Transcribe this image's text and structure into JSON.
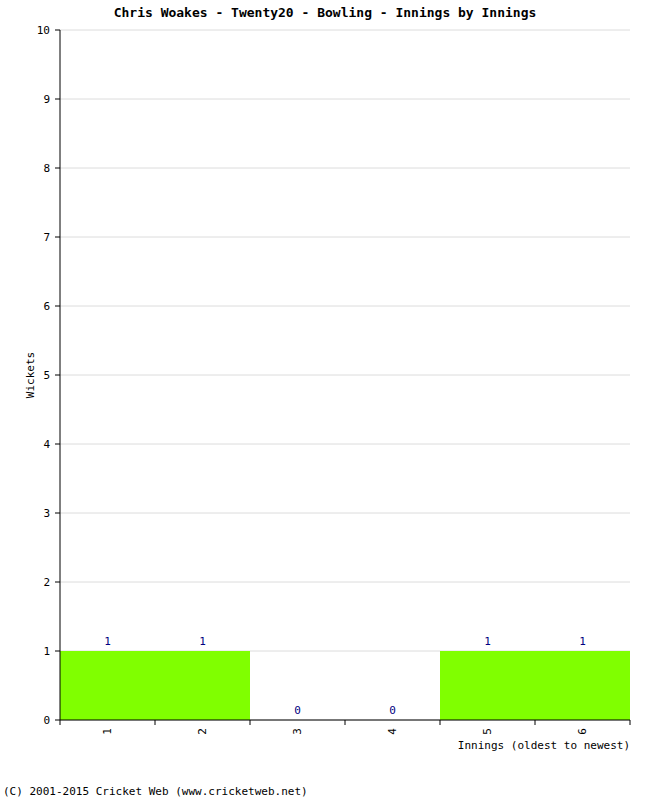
{
  "chart_data": {
    "type": "bar",
    "title": "Chris Woakes - Twenty20 - Bowling - Innings by Innings",
    "x_label": "Innings (oldest to newest)",
    "y_label": "Wickets",
    "annotations": [
      "(C) 2001-2015 Cricket Web (www.cricketweb.net)"
    ],
    "categories": [
      "1",
      "2",
      "3",
      "4",
      "5",
      "6"
    ],
    "values": [
      1,
      1,
      0,
      0,
      1,
      1
    ],
    "color": "#80ff00",
    "ylim": [
      0,
      10
    ],
    "yticks": [
      0,
      1,
      2,
      3,
      4,
      5,
      6,
      7,
      8,
      9,
      10
    ],
    "grid": true,
    "data_labels": true
  }
}
